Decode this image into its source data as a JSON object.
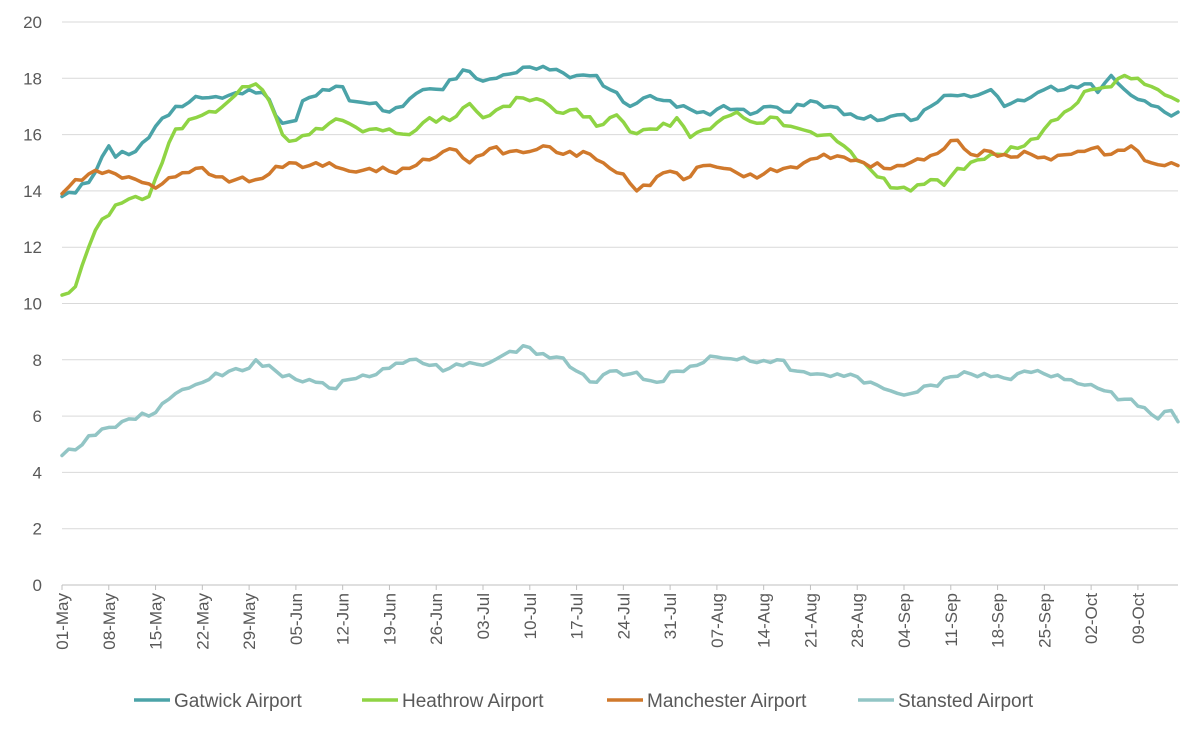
{
  "chart_data": {
    "type": "line",
    "title": "",
    "xlabel": "",
    "ylabel": "",
    "ylim": [
      0,
      20
    ],
    "yticks": [
      0,
      2,
      4,
      6,
      8,
      10,
      12,
      14,
      16,
      18,
      20
    ],
    "x_start": "01-May",
    "x_labels": [
      "01-May",
      "08-May",
      "15-May",
      "22-May",
      "29-May",
      "05-Jun",
      "12-Jun",
      "19-Jun",
      "26-Jun",
      "03-Jul",
      "10-Jul",
      "17-Jul",
      "24-Jul",
      "31-Jul",
      "07-Aug",
      "14-Aug",
      "21-Aug",
      "28-Aug",
      "04-Sep",
      "11-Sep",
      "18-Sep",
      "25-Sep",
      "02-Oct",
      "09-Oct"
    ],
    "grid": "horizontal",
    "legend_position": "bottom",
    "series": [
      {
        "name": "Gatwick Airport",
        "color": "#4BA3A8",
        "anchors": [
          [
            "01-May",
            13.8
          ],
          [
            "05-May",
            14.3
          ],
          [
            "08-May",
            15.6
          ],
          [
            "09-May",
            15.2
          ],
          [
            "12-May",
            15.4
          ],
          [
            "15-May",
            16.3
          ],
          [
            "18-May",
            17.0
          ],
          [
            "22-May",
            17.3
          ],
          [
            "26-May",
            17.4
          ],
          [
            "29-May",
            17.6
          ],
          [
            "31-May",
            17.5
          ],
          [
            "03-Jun",
            16.4
          ],
          [
            "05-Jun",
            16.5
          ],
          [
            "06-Jun",
            17.2
          ],
          [
            "09-Jun",
            17.6
          ],
          [
            "12-Jun",
            17.7
          ],
          [
            "13-Jun",
            17.2
          ],
          [
            "16-Jun",
            17.1
          ],
          [
            "19-Jun",
            16.8
          ],
          [
            "21-Jun",
            17.0
          ],
          [
            "24-Jun",
            17.6
          ],
          [
            "27-Jun",
            17.6
          ],
          [
            "30-Jun",
            18.3
          ],
          [
            "03-Jul",
            17.9
          ],
          [
            "05-Jul",
            18.0
          ],
          [
            "08-Jul",
            18.2
          ],
          [
            "10-Jul",
            18.4
          ],
          [
            "13-Jul",
            18.3
          ],
          [
            "17-Jul",
            18.1
          ],
          [
            "20-Jul",
            18.1
          ],
          [
            "22-Jul",
            17.6
          ],
          [
            "25-Jul",
            17.0
          ],
          [
            "27-Jul",
            17.3
          ],
          [
            "31-Jul",
            17.2
          ],
          [
            "03-Aug",
            16.9
          ],
          [
            "06-Aug",
            16.7
          ],
          [
            "07-Aug",
            16.9
          ],
          [
            "10-Aug",
            16.9
          ],
          [
            "13-Aug",
            16.8
          ],
          [
            "15-Aug",
            17.0
          ],
          [
            "18-Aug",
            16.8
          ],
          [
            "21-Aug",
            17.2
          ],
          [
            "24-Aug",
            17.0
          ],
          [
            "28-Aug",
            16.6
          ],
          [
            "31-Aug",
            16.5
          ],
          [
            "03-Sep",
            16.7
          ],
          [
            "05-Sep",
            16.5
          ],
          [
            "08-Sep",
            17.0
          ],
          [
            "11-Sep",
            17.4
          ],
          [
            "15-Sep",
            17.4
          ],
          [
            "17-Sep",
            17.6
          ],
          [
            "19-Sep",
            17.0
          ],
          [
            "22-Sep",
            17.2
          ],
          [
            "25-Sep",
            17.6
          ],
          [
            "28-Sep",
            17.6
          ],
          [
            "02-Oct",
            17.8
          ],
          [
            "03-Oct",
            17.5
          ],
          [
            "05-Oct",
            18.1
          ],
          [
            "07-Oct",
            17.6
          ],
          [
            "10-Oct",
            17.2
          ],
          [
            "13-Oct",
            16.8
          ],
          [
            "15-Oct",
            16.8
          ]
        ]
      },
      {
        "name": "Heathrow Airport",
        "color": "#8FD444",
        "anchors": [
          [
            "01-May",
            10.3
          ],
          [
            "03-May",
            10.6
          ],
          [
            "05-May",
            12.0
          ],
          [
            "07-May",
            13.0
          ],
          [
            "09-May",
            13.5
          ],
          [
            "12-May",
            13.8
          ],
          [
            "14-May",
            13.8
          ],
          [
            "16-May",
            15.0
          ],
          [
            "18-May",
            16.2
          ],
          [
            "21-May",
            16.6
          ],
          [
            "24-May",
            16.8
          ],
          [
            "26-May",
            17.2
          ],
          [
            "28-May",
            17.7
          ],
          [
            "30-May",
            17.8
          ],
          [
            "01-Jun",
            17.2
          ],
          [
            "03-Jun",
            16.0
          ],
          [
            "05-Jun",
            15.8
          ],
          [
            "07-Jun",
            16.0
          ],
          [
            "10-Jun",
            16.4
          ],
          [
            "12-Jun",
            16.5
          ],
          [
            "15-Jun",
            16.1
          ],
          [
            "19-Jun",
            16.2
          ],
          [
            "22-Jun",
            16.0
          ],
          [
            "25-Jun",
            16.6
          ],
          [
            "28-Jun",
            16.5
          ],
          [
            "01-Jul",
            17.1
          ],
          [
            "03-Jul",
            16.6
          ],
          [
            "06-Jul",
            17.0
          ],
          [
            "09-Jul",
            17.3
          ],
          [
            "12-Jul",
            17.2
          ],
          [
            "14-Jul",
            16.8
          ],
          [
            "17-Jul",
            16.9
          ],
          [
            "20-Jul",
            16.3
          ],
          [
            "23-Jul",
            16.7
          ],
          [
            "25-Jul",
            16.1
          ],
          [
            "28-Jul",
            16.2
          ],
          [
            "31-Jul",
            16.3
          ],
          [
            "01-Aug",
            16.6
          ],
          [
            "03-Aug",
            15.9
          ],
          [
            "06-Aug",
            16.2
          ],
          [
            "08-Aug",
            16.6
          ],
          [
            "10-Aug",
            16.8
          ],
          [
            "13-Aug",
            16.4
          ],
          [
            "16-Aug",
            16.6
          ],
          [
            "18-Aug",
            16.3
          ],
          [
            "21-Aug",
            16.1
          ],
          [
            "24-Aug",
            16.0
          ],
          [
            "26-Aug",
            15.6
          ],
          [
            "29-Aug",
            15.0
          ],
          [
            "31-Aug",
            14.5
          ],
          [
            "03-Sep",
            14.1
          ],
          [
            "05-Sep",
            14.0
          ],
          [
            "08-Sep",
            14.4
          ],
          [
            "10-Sep",
            14.2
          ],
          [
            "12-Sep",
            14.8
          ],
          [
            "15-Sep",
            15.1
          ],
          [
            "18-Sep",
            15.3
          ],
          [
            "22-Sep",
            15.6
          ],
          [
            "25-Sep",
            16.2
          ],
          [
            "28-Sep",
            16.8
          ],
          [
            "02-Oct",
            17.6
          ],
          [
            "05-Oct",
            17.7
          ],
          [
            "07-Oct",
            18.1
          ],
          [
            "09-Oct",
            18.0
          ],
          [
            "12-Oct",
            17.6
          ],
          [
            "15-Oct",
            17.2
          ]
        ]
      },
      {
        "name": "Manchester Airport",
        "color": "#D0792C",
        "anchors": [
          [
            "01-May",
            13.9
          ],
          [
            "03-May",
            14.4
          ],
          [
            "05-May",
            14.6
          ],
          [
            "08-May",
            14.7
          ],
          [
            "11-May",
            14.5
          ],
          [
            "13-May",
            14.3
          ],
          [
            "15-May",
            14.1
          ],
          [
            "18-May",
            14.5
          ],
          [
            "21-May",
            14.8
          ],
          [
            "24-May",
            14.5
          ],
          [
            "27-May",
            14.4
          ],
          [
            "30-May",
            14.4
          ],
          [
            "01-Jun",
            14.6
          ],
          [
            "04-Jun",
            15.0
          ],
          [
            "07-Jun",
            14.9
          ],
          [
            "10-Jun",
            15.0
          ],
          [
            "13-Jun",
            14.7
          ],
          [
            "16-Jun",
            14.8
          ],
          [
            "19-Jun",
            14.7
          ],
          [
            "22-Jun",
            14.8
          ],
          [
            "25-Jun",
            15.1
          ],
          [
            "28-Jun",
            15.5
          ],
          [
            "01-Jul",
            15.0
          ],
          [
            "04-Jul",
            15.5
          ],
          [
            "07-Jul",
            15.4
          ],
          [
            "10-Jul",
            15.4
          ],
          [
            "12-Jul",
            15.6
          ],
          [
            "15-Jul",
            15.3
          ],
          [
            "18-Jul",
            15.4
          ],
          [
            "21-Jul",
            15.0
          ],
          [
            "24-Jul",
            14.6
          ],
          [
            "26-Jul",
            14.0
          ],
          [
            "29-Jul",
            14.5
          ],
          [
            "31-Jul",
            14.7
          ],
          [
            "02-Aug",
            14.4
          ],
          [
            "05-Aug",
            14.9
          ],
          [
            "08-Aug",
            14.8
          ],
          [
            "11-Aug",
            14.5
          ],
          [
            "14-Aug",
            14.6
          ],
          [
            "17-Aug",
            14.8
          ],
          [
            "20-Aug",
            15.0
          ],
          [
            "23-Aug",
            15.3
          ],
          [
            "26-Aug",
            15.2
          ],
          [
            "29-Aug",
            15.0
          ],
          [
            "01-Sep",
            14.8
          ],
          [
            "04-Sep",
            14.9
          ],
          [
            "07-Sep",
            15.1
          ],
          [
            "10-Sep",
            15.5
          ],
          [
            "12-Sep",
            15.8
          ],
          [
            "14-Sep",
            15.3
          ],
          [
            "17-Sep",
            15.4
          ],
          [
            "20-Sep",
            15.2
          ],
          [
            "23-Sep",
            15.3
          ],
          [
            "26-Sep",
            15.1
          ],
          [
            "29-Sep",
            15.3
          ],
          [
            "02-Oct",
            15.5
          ],
          [
            "05-Oct",
            15.3
          ],
          [
            "08-Oct",
            15.6
          ],
          [
            "11-Oct",
            15.0
          ],
          [
            "13-Oct",
            14.9
          ],
          [
            "15-Oct",
            14.9
          ]
        ]
      },
      {
        "name": "Stansted Airport",
        "color": "#92C5C5",
        "anchors": [
          [
            "01-May",
            4.6
          ],
          [
            "03-May",
            4.8
          ],
          [
            "05-May",
            5.3
          ],
          [
            "08-May",
            5.6
          ],
          [
            "11-May",
            5.9
          ],
          [
            "14-May",
            6.0
          ],
          [
            "17-May",
            6.6
          ],
          [
            "20-May",
            7.0
          ],
          [
            "23-May",
            7.3
          ],
          [
            "26-May",
            7.6
          ],
          [
            "29-May",
            7.7
          ],
          [
            "30-May",
            8.0
          ],
          [
            "01-Jun",
            7.8
          ],
          [
            "03-Jun",
            7.4
          ],
          [
            "05-Jun",
            7.3
          ],
          [
            "08-Jun",
            7.2
          ],
          [
            "10-Jun",
            7.0
          ],
          [
            "13-Jun",
            7.3
          ],
          [
            "16-Jun",
            7.4
          ],
          [
            "19-Jun",
            7.7
          ],
          [
            "22-Jun",
            8.0
          ],
          [
            "25-Jun",
            7.8
          ],
          [
            "28-Jun",
            7.7
          ],
          [
            "01-Jul",
            7.9
          ],
          [
            "04-Jul",
            7.9
          ],
          [
            "07-Jul",
            8.3
          ],
          [
            "09-Jul",
            8.5
          ],
          [
            "11-Jul",
            8.2
          ],
          [
            "14-Jul",
            8.1
          ],
          [
            "17-Jul",
            7.6
          ],
          [
            "20-Jul",
            7.2
          ],
          [
            "22-Jul",
            7.6
          ],
          [
            "25-Jul",
            7.5
          ],
          [
            "29-Jul",
            7.2
          ],
          [
            "01-Aug",
            7.6
          ],
          [
            "04-Aug",
            7.8
          ],
          [
            "07-Aug",
            8.1
          ],
          [
            "10-Aug",
            8.0
          ],
          [
            "13-Aug",
            7.9
          ],
          [
            "16-Aug",
            8.0
          ],
          [
            "19-Aug",
            7.6
          ],
          [
            "22-Aug",
            7.5
          ],
          [
            "25-Aug",
            7.5
          ],
          [
            "28-Aug",
            7.4
          ],
          [
            "31-Aug",
            7.1
          ],
          [
            "02-Sep",
            6.9
          ],
          [
            "05-Sep",
            6.8
          ],
          [
            "08-Sep",
            7.1
          ],
          [
            "11-Sep",
            7.4
          ],
          [
            "14-Sep",
            7.5
          ],
          [
            "17-Sep",
            7.4
          ],
          [
            "20-Sep",
            7.3
          ],
          [
            "22-Sep",
            7.6
          ],
          [
            "25-Sep",
            7.5
          ],
          [
            "28-Sep",
            7.3
          ],
          [
            "01-Oct",
            7.1
          ],
          [
            "04-Oct",
            6.9
          ],
          [
            "07-Oct",
            6.6
          ],
          [
            "10-Oct",
            6.3
          ],
          [
            "12-Oct",
            5.9
          ],
          [
            "14-Oct",
            6.2
          ],
          [
            "15-Oct",
            5.8
          ]
        ]
      }
    ]
  }
}
